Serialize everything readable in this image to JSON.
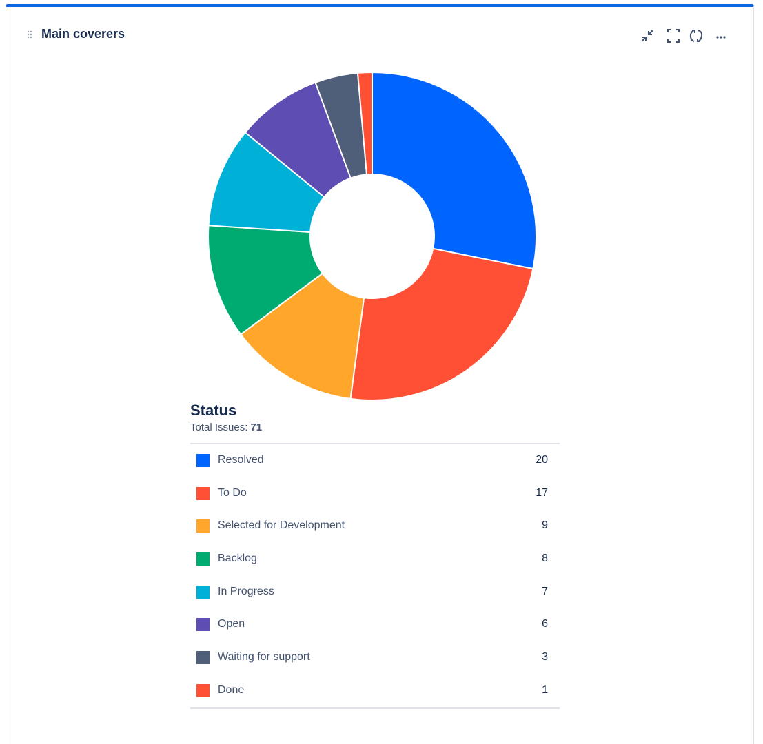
{
  "header": {
    "title": "Main coverers"
  },
  "chart_data": {
    "type": "donut",
    "title": "Status",
    "total_label": "Total Issues:",
    "total": 71,
    "categories": [
      "Resolved",
      "To Do",
      "Selected for Development",
      "Backlog",
      "In Progress",
      "Open",
      "Waiting for support",
      "Done"
    ],
    "values": [
      20,
      17,
      9,
      8,
      7,
      6,
      3,
      1
    ],
    "colors": [
      "#0065ff",
      "#ff5035",
      "#ffa62b",
      "#00ab72",
      "#00b0d6",
      "#5e4db2",
      "#505f79",
      "#ff5035"
    ]
  }
}
